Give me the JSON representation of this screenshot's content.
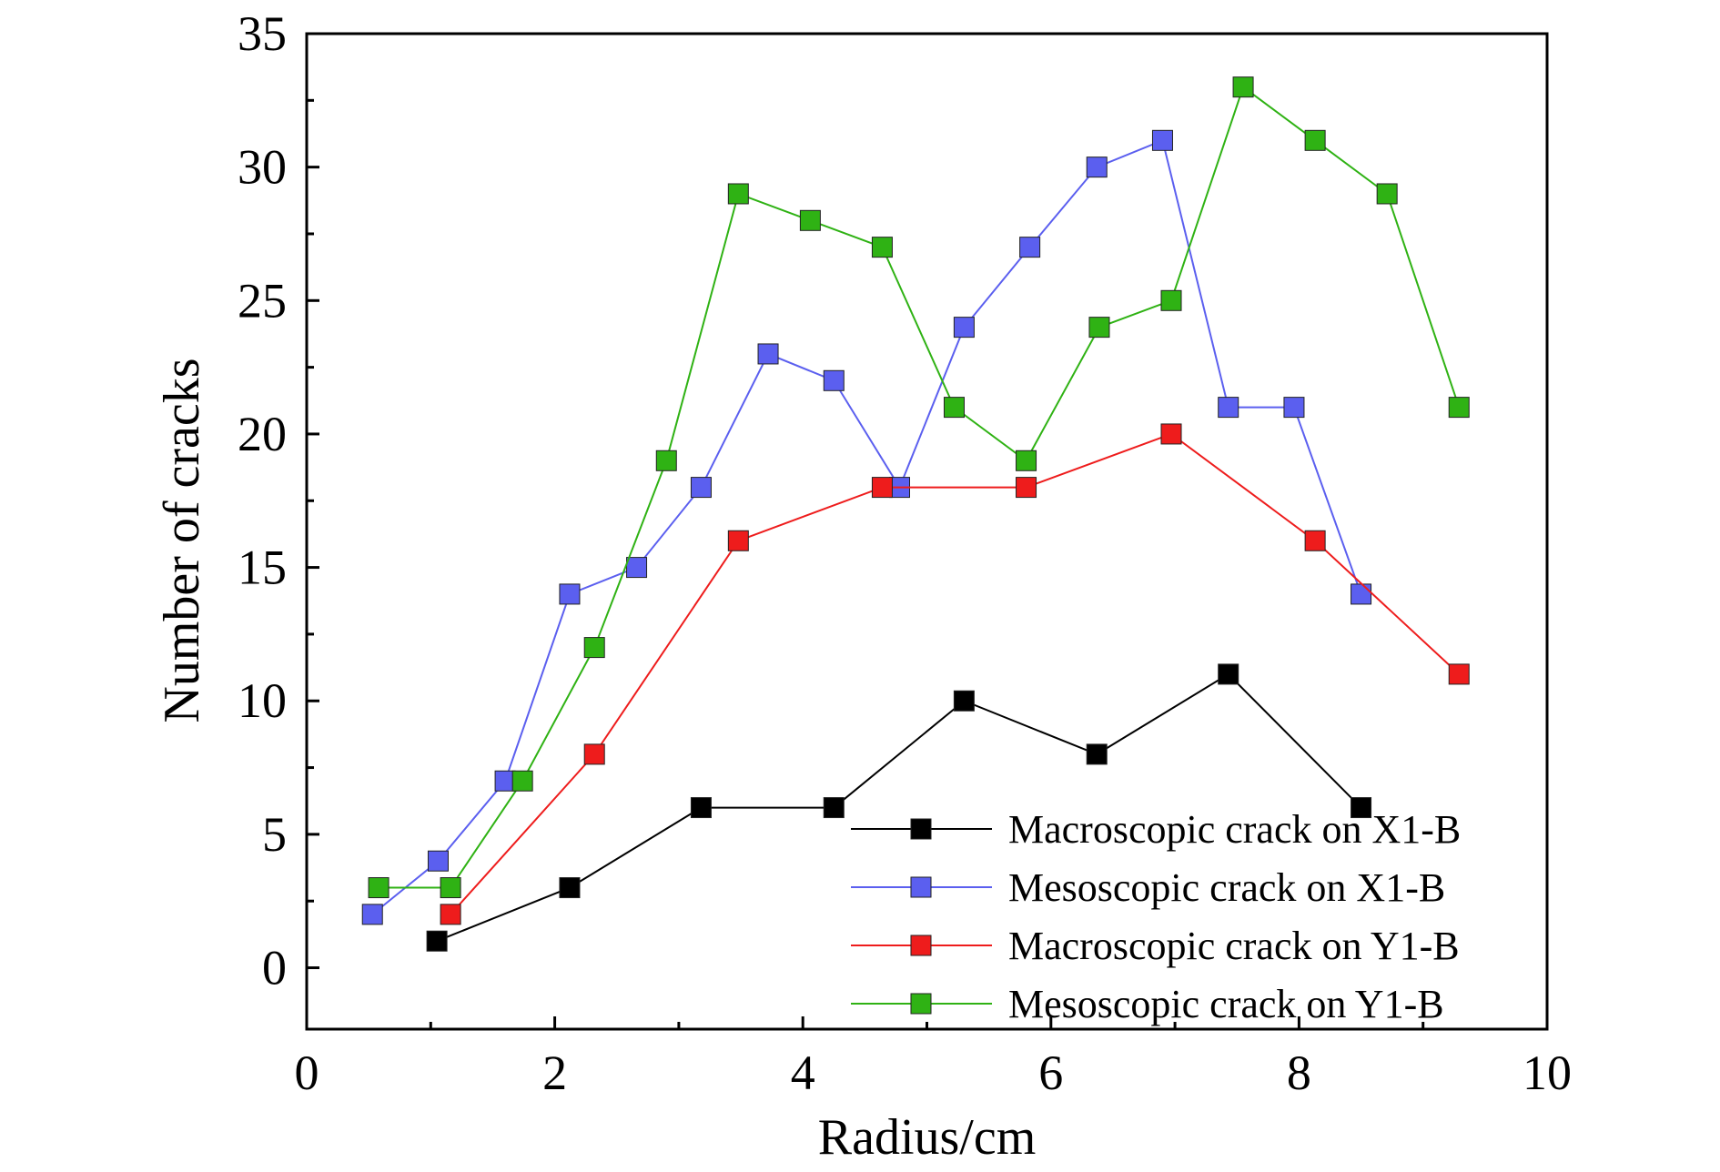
{
  "chart_data": {
    "type": "line",
    "title": "",
    "xlabel": "Radius/cm",
    "ylabel": "Number of cracks",
    "xlim": [
      0,
      10
    ],
    "ylim": [
      -2.3,
      35
    ],
    "xticks": [
      0,
      2,
      4,
      6,
      8,
      10
    ],
    "yticks": [
      0,
      5,
      10,
      15,
      20,
      25,
      30,
      35
    ],
    "grid": false,
    "legend_position": "bottom-right",
    "series": [
      {
        "name": "Macroscopic crack on X1-B",
        "color": "#000000",
        "marker": "square",
        "points": [
          [
            1.05,
            1
          ],
          [
            2.12,
            3
          ],
          [
            3.18,
            6
          ],
          [
            4.25,
            6
          ],
          [
            5.3,
            10
          ],
          [
            6.37,
            8
          ],
          [
            7.43,
            11
          ],
          [
            8.5,
            6
          ]
        ]
      },
      {
        "name": "Mesoscopic crack on X1-B",
        "color": "#5b5fef",
        "marker": "square",
        "points": [
          [
            0.53,
            2
          ],
          [
            1.06,
            4
          ],
          [
            1.6,
            7
          ],
          [
            2.12,
            14
          ],
          [
            2.66,
            15
          ],
          [
            3.18,
            18
          ],
          [
            3.72,
            23
          ],
          [
            4.25,
            22
          ],
          [
            4.78,
            18
          ],
          [
            5.3,
            24
          ],
          [
            5.83,
            27
          ],
          [
            6.37,
            30
          ],
          [
            6.9,
            31
          ],
          [
            7.43,
            21
          ],
          [
            7.96,
            21
          ],
          [
            8.5,
            14
          ]
        ]
      },
      {
        "name": "Macroscopic crack on Y1-B",
        "color": "#ee1c1c",
        "marker": "square",
        "points": [
          [
            1.16,
            2
          ],
          [
            2.32,
            8
          ],
          [
            3.48,
            16
          ],
          [
            4.64,
            18
          ],
          [
            5.8,
            18
          ],
          [
            6.97,
            20
          ],
          [
            8.13,
            16
          ],
          [
            9.29,
            11
          ]
        ]
      },
      {
        "name": "Mesoscopic crack on Y1-B",
        "color": "#2fb214",
        "marker": "square",
        "points": [
          [
            0.58,
            3
          ],
          [
            1.16,
            3
          ],
          [
            1.74,
            7
          ],
          [
            2.32,
            12
          ],
          [
            2.9,
            19
          ],
          [
            3.48,
            29
          ],
          [
            4.06,
            28
          ],
          [
            4.64,
            27
          ],
          [
            5.22,
            21
          ],
          [
            5.8,
            19
          ],
          [
            6.39,
            24
          ],
          [
            6.97,
            25
          ],
          [
            7.55,
            33
          ],
          [
            8.13,
            31
          ],
          [
            8.71,
            29
          ],
          [
            9.29,
            21
          ]
        ]
      }
    ]
  }
}
